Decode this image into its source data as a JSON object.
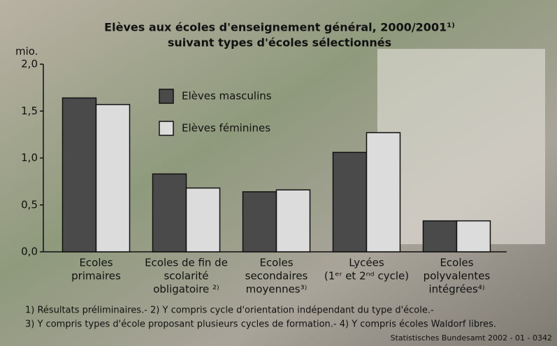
{
  "chart_data": {
    "type": "bar",
    "title": [
      "Elèves aux écoles d'enseignement général, 2000/2001¹⁾",
      "suivant types d'écoles sélectionnés"
    ],
    "y_label": "mio.",
    "categories": [
      [
        "Ecoles",
        "primaires"
      ],
      [
        "Ecoles de fin de",
        "scolarité",
        "obligatoire ²⁾"
      ],
      [
        "Ecoles",
        "secondaires",
        "moyennes³⁾"
      ],
      [
        "Lycées",
        "(1ᵉʳ et 2ⁿᵈ cycle)"
      ],
      [
        "Ecoles",
        "polyvalentes",
        "intégrées⁴⁾"
      ]
    ],
    "series": [
      {
        "name": "Elèves masculins",
        "color": "#4a4a4a",
        "values": [
          1.64,
          0.83,
          0.64,
          1.06,
          0.33
        ]
      },
      {
        "name": "Elèves féminines",
        "color": "#dcdcdc",
        "values": [
          1.57,
          0.68,
          0.66,
          1.27,
          0.33
        ]
      }
    ],
    "ylim": [
      0,
      2
    ],
    "yticks": [
      {
        "value": 0,
        "label": "0,0"
      },
      {
        "value": 0.5,
        "label": "0,5"
      },
      {
        "value": 1,
        "label": "1,0"
      },
      {
        "value": 1.5,
        "label": "1,5"
      },
      {
        "value": 2,
        "label": "2,0"
      }
    ],
    "footnotes": [
      "1) Résultats préliminaires.- 2) Y compris cycle d'orientation indépendant du type d'école.-",
      "3) Y compris types d'école proposant plusieurs cycles de formation.- 4) Y compris écoles Waldorf libres."
    ],
    "source": "Statistisches Bundesamt 2002 - 01 - 0342"
  }
}
